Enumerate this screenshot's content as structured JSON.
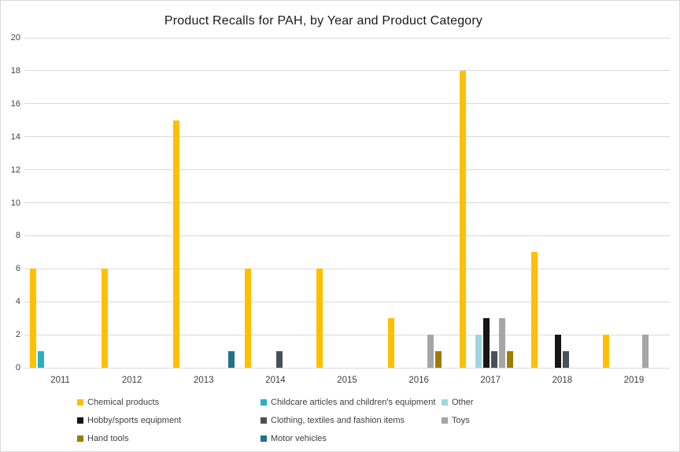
{
  "chart_data": {
    "type": "bar",
    "title": "Product Recalls for PAH, by Year and Product Category",
    "categories": [
      "2011",
      "2012",
      "2013",
      "2014",
      "2015",
      "2016",
      "2017",
      "2018",
      "2019"
    ],
    "series": [
      {
        "name": "Chemical products",
        "color": "#FFC000",
        "values": [
          6,
          6,
          15,
          6,
          6,
          3,
          18,
          7,
          2
        ]
      },
      {
        "name": "Childcare articles and children's equipment",
        "color": "#29AFC7",
        "values": [
          1,
          0,
          0,
          0,
          0,
          0,
          0,
          0,
          0
        ]
      },
      {
        "name": "Other",
        "color": "#9DD6E3",
        "values": [
          0,
          0,
          0,
          0,
          0,
          0,
          2,
          0,
          0
        ]
      },
      {
        "name": "Hobby/sports equipment",
        "color": "#161616",
        "values": [
          0,
          0,
          0,
          0,
          0,
          0,
          3,
          2,
          0
        ]
      },
      {
        "name": "Clothing, textiles and fashion items",
        "color": "#485158",
        "values": [
          0,
          0,
          0,
          1,
          0,
          0,
          1,
          1,
          0
        ]
      },
      {
        "name": "Toys",
        "color": "#A6A6A6",
        "values": [
          0,
          0,
          0,
          0,
          0,
          2,
          3,
          0,
          2
        ]
      },
      {
        "name": "Hand tools",
        "color": "#9E7C00",
        "values": [
          0,
          0,
          0,
          0,
          0,
          1,
          1,
          0,
          0
        ]
      },
      {
        "name": "Motor vehicles",
        "color": "#20748A",
        "values": [
          0,
          0,
          1,
          0,
          0,
          0,
          0,
          0,
          0
        ]
      }
    ],
    "xlabel": "",
    "ylabel": "",
    "ylim": [
      0,
      20
    ],
    "ytick_step": 2,
    "yticks": [
      "0",
      "2",
      "4",
      "6",
      "8",
      "10",
      "12",
      "14",
      "16",
      "18",
      "20"
    ],
    "grid": "horizontal",
    "legend_position": "bottom",
    "legend_columns": [
      [
        0,
        3,
        6
      ],
      [
        1,
        4,
        7
      ],
      [
        2,
        5
      ]
    ]
  },
  "colors": {
    "background": "#FFFFFF",
    "frame_border": "#D9D9D9",
    "gridline": "#D9D9D9",
    "axis_text": "#404040",
    "title_text": "#1A1A1A"
  }
}
